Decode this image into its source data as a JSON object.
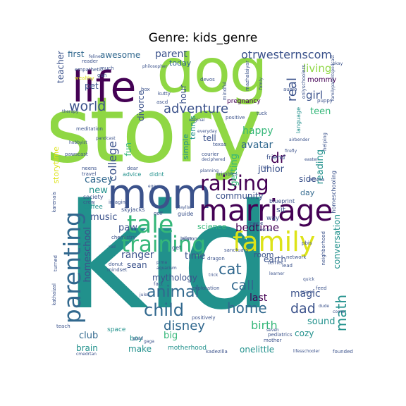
{
  "figure": {
    "title": "Genre: kids_genre"
  },
  "palette": {
    "dark_purple": "#440154",
    "indigo": "#3b528b",
    "slate": "#31688e",
    "teal": "#21918c",
    "green": "#35b779",
    "lime": "#8fd744",
    "yellow": "#dde318"
  },
  "words": {
    "kid": "kid",
    "story": "story",
    "dog": "dog",
    "life": "life",
    "mom": "mom",
    "marriage": "marriage",
    "raising": "raising",
    "tale": "tale",
    "family": "family",
    "training": "training",
    "parenting": "parenting",
    "animal": "animal",
    "child": "child",
    "disney": "disney",
    "home": "home",
    "dad": "dad",
    "math": "math",
    "adventure": "adventure",
    "world": "world",
    "otrwesternscom": "otrwesternscom",
    "parent": "parent",
    "awesome": "awesome",
    "first": "first",
    "today": "today",
    "living": "living",
    "real": "real",
    "girl": "girl",
    "mommy": "mommy",
    "teen": "teen",
    "happy": "happy",
    "avatar": "avatar",
    "dr": "dr",
    "junior": "junior",
    "reading": "reading",
    "getting": "getting",
    "college": "college",
    "casey": "casey",
    "new": "new",
    "community": "community",
    "bedtime": "bedtime",
    "music": "music",
    "paw": "paw",
    "homeschool": "homeschool",
    "ranger": "ranger",
    "time": "time",
    "cat": "cat",
    "call": "call",
    "last": "last",
    "magic": "magic",
    "birth": "birth",
    "sound": "sound",
    "cozy": "cozy",
    "conversation": "conversation",
    "mythology": "mythology",
    "sean": "sean",
    "club": "club",
    "brain": "brain",
    "make": "make",
    "big": "big",
    "boy": "boy",
    "onelittle": "onelittle",
    "teacher": "teacher",
    "pet": "pet",
    "fun": "fun",
    "divorce": "divorce",
    "hour": "hour",
    "tennis": "tennis",
    "simple": "simple",
    "tell": "tell",
    "storytime": "storytime",
    "science": "science",
    "earth": "earth",
    "room": "room",
    "side": "side",
    "day": "day",
    "sit": "sit",
    "way": "way",
    "coffee": "coffee",
    "guide": "guide",
    "pregnancy": "pregnancy",
    "friend": "friend",
    "motherhood": "motherhood",
    "space": "space",
    "exploration": "exploration",
    "meditation": "meditation",
    "pawscast": "pawscast",
    "dear": "dear",
    "advice": "advice",
    "didnt": "didnt",
    "skyjacks": "skyjacks",
    "society": "society",
    "crew": "crew",
    "blueprint": "blueprint",
    "homeschooling": "homeschooling",
    "neighborhood": "neighborhood",
    "emma": "emma",
    "helping": "helping",
    "pbis": "pbis",
    "network": "network",
    "lead": "lead",
    "feed": "feed",
    "pediatrics": "pediatrics",
    "positively": "positively",
    "founded": "founded",
    "kadezilla": "kadezilla",
    "mother": "mother",
    "sanctuary": "sanctuary",
    "boston": "boston",
    "dragon": "dragon",
    "chemistry": "chemistry",
    "mindset": "mindset",
    "donut": "donut",
    "teach": "teach",
    "kathaizal": "kathaizal",
    "karenais": "karenais",
    "turned": "turned",
    "reader": "reader",
    "empathetic": "empathetic",
    "much": "much",
    "wealthy": "wealthy",
    "kutty": "kutty",
    "box": "box",
    "devos": "devos",
    "gun": "gun",
    "mindful": "mindful",
    "ascd": "ascd",
    "therapy": "therapy",
    "original": "original",
    "everyday": "everyday",
    "texas": "texas",
    "courier": "courier",
    "deciphered": "deciphered",
    "positive": "positive",
    "tuck": "tuck",
    "language": "language",
    "audio": "audio",
    "mazhalaiyar": "mazhalaiyar",
    "onlyschoolers": "onlyschoolers",
    "puppy": "puppy",
    "okay": "okay",
    "firmly": "firmly",
    "philosopher": "philosopher",
    "neens": "neens",
    "travel": "travel",
    "imagine": "imagine",
    "planning": "planning",
    "trimbles": "trimbles",
    "playlist": "playlist",
    "golf": "golf",
    "alive": "alive",
    "moxie": "moxie",
    "rescue": "rescue",
    "terrier": "terrier",
    "quick": "quick",
    "crayon": "crayon",
    "dude": "dude",
    "come": "come",
    "seven": "seven",
    "learner": "learner",
    "aquarium": "aquarium",
    "pima": "pima",
    "fact": "fact",
    "jules": "jules",
    "trick": "trick",
    "pandcast": "pandcast",
    "hobbyist": "hobbyist",
    "familyparentspodcast": "familyparentspodcast",
    "airbender": "airbender",
    "good": "good",
    "gaga": "gaga",
    "lifesschooler": "lifesschooler",
    "cmedrtan": "cmedrtan",
    "nat": "nat",
    "get": "get",
    "rad": "rad",
    "ego": "ego",
    "feline": "feline",
    "firefly": "firefly",
    "easter": "easter"
  }
}
